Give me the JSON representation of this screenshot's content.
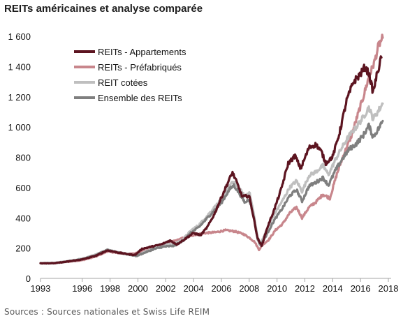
{
  "chart_data": {
    "type": "line",
    "title": "REITs américaines et analyse comparée",
    "source": "Sources : Sources nationales et Swiss Life REIM",
    "xlabel": "",
    "ylabel": "",
    "xlim": [
      1993,
      2018.2
    ],
    "ylim": [
      0,
      1600
    ],
    "x_ticks": [
      "1993",
      "1996",
      "1998",
      "2000",
      "2002",
      "2004",
      "2006",
      "2008",
      "2010",
      "2012",
      "2014",
      "2016",
      "2018"
    ],
    "x_tick_values": [
      1993,
      1996,
      1998,
      2000,
      2002,
      2004,
      2006,
      2008,
      2010,
      2012,
      2014,
      2016,
      2018
    ],
    "y_ticks": [
      "0",
      "200",
      "400",
      "600",
      "800",
      "1 000",
      "1 200",
      "1 400",
      "1 600"
    ],
    "y_tick_values": [
      0,
      200,
      400,
      600,
      800,
      1000,
      1200,
      1400,
      1600
    ],
    "grid": false,
    "legend_position": "top-left",
    "series": [
      {
        "name": "REITs - Appartements",
        "color": "#5c1420",
        "points": [
          [
            1993,
            100
          ],
          [
            1994,
            100
          ],
          [
            1995,
            112
          ],
          [
            1996,
            125
          ],
          [
            1997,
            150
          ],
          [
            1997.8,
            185
          ],
          [
            1998.5,
            172
          ],
          [
            1999.3,
            160
          ],
          [
            1999.8,
            155
          ],
          [
            2000.3,
            195
          ],
          [
            2001,
            210
          ],
          [
            2001.7,
            225
          ],
          [
            2002.3,
            250
          ],
          [
            2002.8,
            225
          ],
          [
            2003.3,
            255
          ],
          [
            2004,
            300
          ],
          [
            2004.5,
            285
          ],
          [
            2005,
            340
          ],
          [
            2005.5,
            425
          ],
          [
            2006,
            535
          ],
          [
            2006.5,
            640
          ],
          [
            2006.8,
            700
          ],
          [
            2007.1,
            635
          ],
          [
            2007.5,
            540
          ],
          [
            2008,
            545
          ],
          [
            2008.3,
            410
          ],
          [
            2008.6,
            265
          ],
          [
            2008.9,
            215
          ],
          [
            2009.3,
            335
          ],
          [
            2009.8,
            455
          ],
          [
            2010.3,
            590
          ],
          [
            2010.8,
            760
          ],
          [
            2011.3,
            810
          ],
          [
            2011.7,
            725
          ],
          [
            2012.3,
            865
          ],
          [
            2012.8,
            885
          ],
          [
            2013.2,
            835
          ],
          [
            2013.5,
            760
          ],
          [
            2014,
            805
          ],
          [
            2014.5,
            965
          ],
          [
            2015,
            1175
          ],
          [
            2015.5,
            1300
          ],
          [
            2016,
            1350
          ],
          [
            2016.3,
            1395
          ],
          [
            2016.6,
            1355
          ],
          [
            2016.9,
            1230
          ],
          [
            2017.2,
            1355
          ],
          [
            2017.5,
            1460
          ]
        ]
      },
      {
        "name": "REITs - Préfabriqués",
        "color": "#c8868c",
        "points": [
          [
            1993,
            100
          ],
          [
            1994,
            101
          ],
          [
            1995,
            110
          ],
          [
            1996,
            120
          ],
          [
            1997,
            145
          ],
          [
            1997.8,
            178
          ],
          [
            1998.5,
            168
          ],
          [
            1999.3,
            160
          ],
          [
            2000,
            170
          ],
          [
            2000.7,
            185
          ],
          [
            2001.4,
            210
          ],
          [
            2002.1,
            235
          ],
          [
            2002.8,
            252
          ],
          [
            2003.5,
            275
          ],
          [
            2004.2,
            290
          ],
          [
            2004.9,
            300
          ],
          [
            2005.6,
            305
          ],
          [
            2006.3,
            318
          ],
          [
            2007,
            310
          ],
          [
            2007.6,
            292
          ],
          [
            2008,
            270
          ],
          [
            2008.4,
            240
          ],
          [
            2008.7,
            190
          ],
          [
            2009,
            225
          ],
          [
            2009.4,
            255
          ],
          [
            2009.9,
            320
          ],
          [
            2010.4,
            360
          ],
          [
            2010.9,
            430
          ],
          [
            2011.4,
            470
          ],
          [
            2011.8,
            400
          ],
          [
            2012.3,
            470
          ],
          [
            2012.8,
            505
          ],
          [
            2013.3,
            555
          ],
          [
            2013.8,
            530
          ],
          [
            2014.3,
            690
          ],
          [
            2014.8,
            820
          ],
          [
            2015.3,
            930
          ],
          [
            2015.8,
            1080
          ],
          [
            2016.2,
            1200
          ],
          [
            2016.6,
            1330
          ],
          [
            2017,
            1430
          ],
          [
            2017.3,
            1540
          ],
          [
            2017.6,
            1590
          ]
        ]
      },
      {
        "name": "REIT cotées",
        "color": "#bfbfbf",
        "points": [
          [
            1993,
            100
          ],
          [
            1994,
            102
          ],
          [
            1995,
            115
          ],
          [
            1996,
            130
          ],
          [
            1997,
            158
          ],
          [
            1997.8,
            190
          ],
          [
            1998.5,
            175
          ],
          [
            1999.3,
            160
          ],
          [
            1999.9,
            150
          ],
          [
            2000.5,
            175
          ],
          [
            2001.2,
            205
          ],
          [
            2001.9,
            225
          ],
          [
            2002.6,
            228
          ],
          [
            2003.2,
            255
          ],
          [
            2003.8,
            315
          ],
          [
            2004.4,
            355
          ],
          [
            2004.9,
            405
          ],
          [
            2005.5,
            470
          ],
          [
            2006,
            520
          ],
          [
            2006.6,
            615
          ],
          [
            2006.9,
            640
          ],
          [
            2007.3,
            590
          ],
          [
            2007.7,
            540
          ],
          [
            2008,
            575
          ],
          [
            2008.3,
            440
          ],
          [
            2008.6,
            270
          ],
          [
            2008.8,
            230
          ],
          [
            2009.2,
            305
          ],
          [
            2009.8,
            425
          ],
          [
            2010.4,
            515
          ],
          [
            2010.9,
            600
          ],
          [
            2011.4,
            645
          ],
          [
            2011.8,
            575
          ],
          [
            2012.3,
            680
          ],
          [
            2012.8,
            705
          ],
          [
            2013.3,
            745
          ],
          [
            2013.7,
            685
          ],
          [
            2014.2,
            785
          ],
          [
            2014.7,
            870
          ],
          [
            2015.2,
            945
          ],
          [
            2015.7,
            1000
          ],
          [
            2016.2,
            1065
          ],
          [
            2016.6,
            1130
          ],
          [
            2016.9,
            1055
          ],
          [
            2017.3,
            1110
          ],
          [
            2017.6,
            1155
          ]
        ]
      },
      {
        "name": "Ensemble des REITs",
        "color": "#7f7f7f",
        "points": [
          [
            1993,
            100
          ],
          [
            1994,
            100
          ],
          [
            1995,
            112
          ],
          [
            1996,
            127
          ],
          [
            1997,
            155
          ],
          [
            1997.8,
            188
          ],
          [
            1998.5,
            172
          ],
          [
            1999.3,
            158
          ],
          [
            1999.9,
            148
          ],
          [
            2000.5,
            170
          ],
          [
            2001.2,
            195
          ],
          [
            2001.9,
            210
          ],
          [
            2002.6,
            215
          ],
          [
            2003.2,
            245
          ],
          [
            2003.8,
            300
          ],
          [
            2004.4,
            340
          ],
          [
            2004.9,
            390
          ],
          [
            2005.5,
            450
          ],
          [
            2006,
            500
          ],
          [
            2006.6,
            590
          ],
          [
            2006.9,
            615
          ],
          [
            2007.3,
            560
          ],
          [
            2007.7,
            500
          ],
          [
            2008,
            525
          ],
          [
            2008.3,
            420
          ],
          [
            2008.6,
            260
          ],
          [
            2008.8,
            220
          ],
          [
            2009.2,
            280
          ],
          [
            2009.8,
            385
          ],
          [
            2010.4,
            465
          ],
          [
            2010.9,
            545
          ],
          [
            2011.4,
            585
          ],
          [
            2011.8,
            510
          ],
          [
            2012.3,
            610
          ],
          [
            2012.8,
            635
          ],
          [
            2013.3,
            665
          ],
          [
            2013.7,
            615
          ],
          [
            2014.2,
            715
          ],
          [
            2014.7,
            790
          ],
          [
            2015.2,
            855
          ],
          [
            2015.7,
            890
          ],
          [
            2016.2,
            945
          ],
          [
            2016.6,
            1010
          ],
          [
            2016.9,
            935
          ],
          [
            2017.3,
            990
          ],
          [
            2017.6,
            1040
          ]
        ]
      }
    ]
  }
}
